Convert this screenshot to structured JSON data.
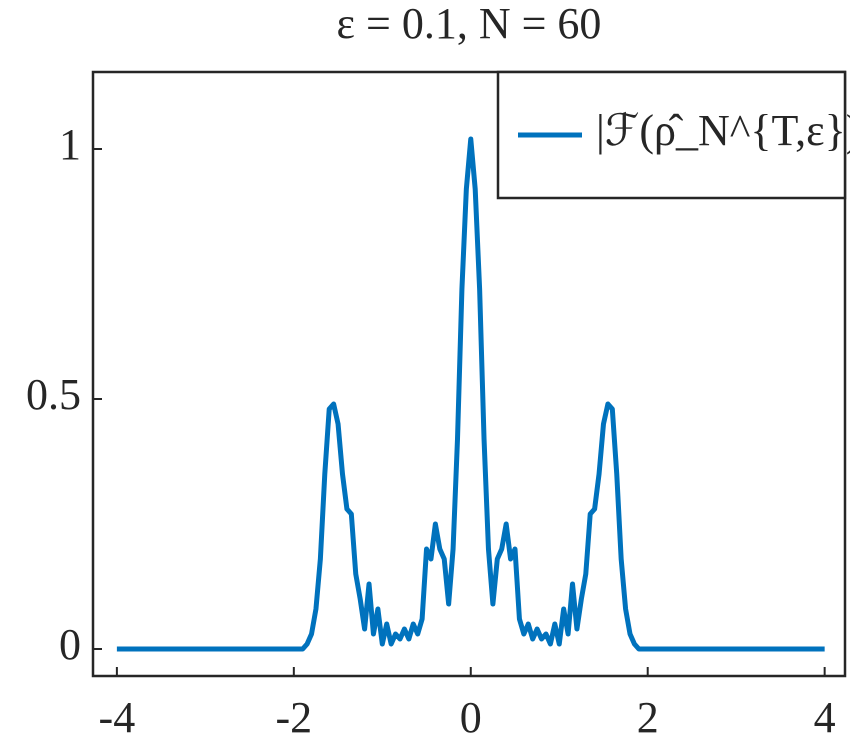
{
  "chart_data": {
    "type": "line",
    "title": "ε = 0.1, N = 60",
    "x": [
      -4,
      -2,
      -1.9,
      -1.85,
      -1.8,
      -1.75,
      -1.7,
      -1.65,
      -1.6,
      -1.55,
      -1.5,
      -1.45,
      -1.4,
      -1.35,
      -1.3,
      -1.25,
      -1.2,
      -1.15,
      -1.1,
      -1.05,
      -1,
      -0.95,
      -0.9,
      -0.85,
      -0.8,
      -0.75,
      -0.7,
      -0.65,
      -0.6,
      -0.55,
      -0.5,
      -0.45,
      -0.4,
      -0.35,
      -0.3,
      -0.25,
      -0.2,
      -0.15,
      -0.1,
      -0.05,
      0,
      0.05,
      0.1,
      0.15,
      0.2,
      0.25,
      0.3,
      0.35,
      0.4,
      0.45,
      0.5,
      0.55,
      0.6,
      0.65,
      0.7,
      0.75,
      0.8,
      0.85,
      0.9,
      0.95,
      1,
      1.05,
      1.1,
      1.15,
      1.2,
      1.25,
      1.3,
      1.35,
      1.4,
      1.45,
      1.5,
      1.55,
      1.6,
      1.65,
      1.7,
      1.75,
      1.8,
      1.85,
      1.9,
      2,
      4
    ],
    "series": [
      {
        "name": "|ℱ(ρ̂_N^{T,ε})|",
        "color": "#0072bd",
        "values": [
          0,
          0,
          0,
          0.01,
          0.03,
          0.08,
          0.18,
          0.35,
          0.48,
          0.49,
          0.45,
          0.35,
          0.28,
          0.27,
          0.15,
          0.1,
          0.04,
          0.13,
          0.03,
          0.08,
          0.01,
          0.05,
          0.01,
          0.03,
          0.02,
          0.04,
          0.02,
          0.05,
          0.03,
          0.06,
          0.2,
          0.18,
          0.25,
          0.2,
          0.18,
          0.09,
          0.2,
          0.42,
          0.72,
          0.92,
          1.02,
          0.92,
          0.72,
          0.42,
          0.2,
          0.09,
          0.18,
          0.2,
          0.25,
          0.18,
          0.2,
          0.06,
          0.03,
          0.05,
          0.02,
          0.04,
          0.02,
          0.03,
          0.01,
          0.05,
          0.01,
          0.08,
          0.03,
          0.13,
          0.04,
          0.1,
          0.15,
          0.27,
          0.28,
          0.35,
          0.45,
          0.49,
          0.48,
          0.35,
          0.18,
          0.08,
          0.03,
          0.01,
          0,
          0,
          0
        ]
      }
    ],
    "xlim": [
      -4.27,
      4.23
    ],
    "xticks": [
      -4,
      -2,
      0,
      2,
      4
    ],
    "ylim": [
      -0.054,
      1.154
    ],
    "yticks": [
      0,
      0.5,
      1
    ],
    "legend": "upper right",
    "grid": false
  }
}
